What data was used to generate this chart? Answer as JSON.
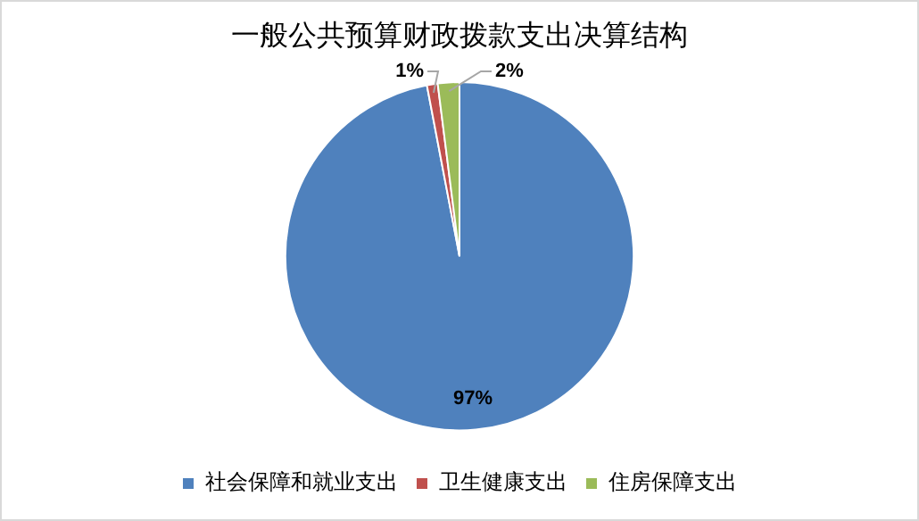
{
  "chart_data": {
    "type": "pie",
    "title": "一般公共预算财政拨款支出决算结构",
    "categories": [
      "社会保障和就业支出",
      "卫生健康支出",
      "住房保障支出"
    ],
    "values": [
      97,
      1,
      2
    ],
    "colors": [
      "#4f81bd",
      "#c0504d",
      "#9bbb59"
    ],
    "value_labels": [
      "97%",
      "1%",
      "2%"
    ],
    "legend": "bottom"
  }
}
